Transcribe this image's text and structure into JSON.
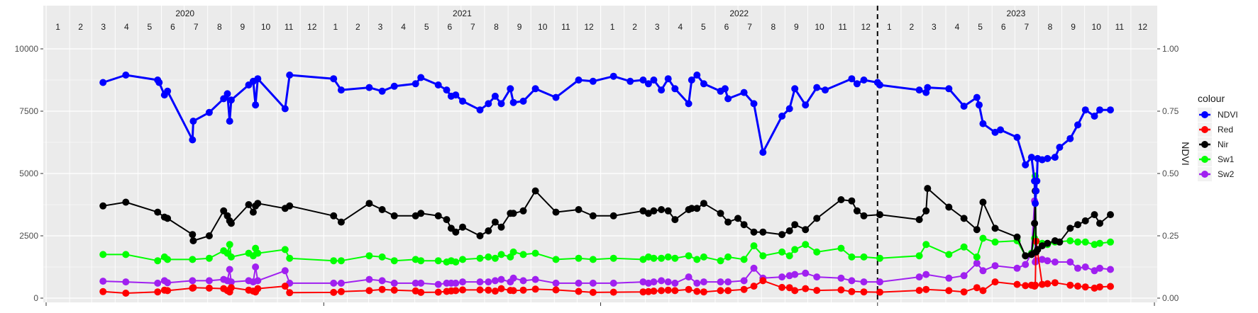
{
  "chart_data": {
    "type": "line",
    "x_type": "date",
    "xlim": [
      "2020-01-01",
      "2024-01-01"
    ],
    "ylim": [
      0,
      10000
    ],
    "y_ticks": [
      0,
      2500,
      5000,
      7500,
      10000
    ],
    "y_tick_labels": [
      "0",
      "2500",
      "5000",
      "7500",
      "10000"
    ],
    "y2lim": [
      0,
      1
    ],
    "y2_ticks": [
      0,
      0.25,
      0.5,
      0.75,
      1
    ],
    "y2_tick_labels": [
      "0.00",
      "0.25",
      "0.50",
      "0.75",
      "1.00"
    ],
    "y2label": "NDVI",
    "year_labels": [
      "2020",
      "2021",
      "2022",
      "2023"
    ],
    "month_labels": [
      "1",
      "2",
      "3",
      "4",
      "5",
      "6",
      "7",
      "8",
      "9",
      "10",
      "11",
      "12"
    ],
    "vline_date": "2023-01-01",
    "legend_title": "colour",
    "legend_position": "right",
    "grid": true,
    "colors": {
      "NDVI": "#0000ff",
      "Red": "#ff0000",
      "Nir": "#000000",
      "Sw1": "#00ff00",
      "Sw2": "#a020f0"
    },
    "series": [
      {
        "name": "NDVI",
        "axis": "right",
        "x": [
          "2020-03-16",
          "2020-04-15",
          "2020-05-27",
          "2020-05-29",
          "2020-06-05",
          "2020-06-09",
          "2020-07-12",
          "2020-07-13",
          "2020-08-03",
          "2020-08-22",
          "2020-08-27",
          "2020-08-30",
          "2020-09-01",
          "2020-09-24",
          "2020-09-30",
          "2020-10-03",
          "2020-10-06",
          "2020-11-11",
          "2020-11-17",
          "2021-01-14",
          "2021-01-24",
          "2021-03-02",
          "2021-03-19",
          "2021-04-04",
          "2021-05-02",
          "2021-05-09",
          "2021-06-01",
          "2021-06-12",
          "2021-06-18",
          "2021-06-24",
          "2021-07-03",
          "2021-07-26",
          "2021-08-06",
          "2021-08-15",
          "2021-08-23",
          "2021-09-04",
          "2021-09-08",
          "2021-09-21",
          "2021-10-07",
          "2021-11-03",
          "2021-12-03",
          "2021-12-22",
          "2022-01-18",
          "2022-02-09",
          "2022-02-26",
          "2022-03-05",
          "2022-03-12",
          "2022-03-22",
          "2022-03-31",
          "2022-04-09",
          "2022-04-27",
          "2022-05-01",
          "2022-05-08",
          "2022-05-17",
          "2022-06-08",
          "2022-06-14",
          "2022-06-18",
          "2022-07-09",
          "2022-07-22",
          "2022-08-03",
          "2022-08-28",
          "2022-09-07",
          "2022-09-14",
          "2022-09-28",
          "2022-10-13",
          "2022-10-24",
          "2022-11-28",
          "2022-12-05",
          "2022-12-14",
          "2023-01-01",
          "2023-01-04",
          "2023-02-25",
          "2023-03-06",
          "2023-03-08",
          "2023-04-05",
          "2023-04-25",
          "2023-05-12",
          "2023-05-15",
          "2023-05-20",
          "2023-06-05",
          "2023-06-12",
          "2023-07-04",
          "2023-07-15",
          "2023-07-23",
          "2023-07-27",
          "2023-07-28",
          "2023-07-29",
          "2023-07-30",
          "2023-07-31",
          "2023-08-06",
          "2023-08-13",
          "2023-08-23",
          "2023-08-29",
          "2023-09-12",
          "2023-09-22",
          "2023-10-02",
          "2023-10-14",
          "2023-10-21",
          "2023-11-04"
        ],
        "values": [
          0.865,
          0.895,
          0.875,
          0.865,
          0.815,
          0.83,
          0.635,
          0.71,
          0.745,
          0.8,
          0.82,
          0.71,
          0.795,
          0.855,
          0.87,
          0.775,
          0.88,
          0.76,
          0.895,
          0.88,
          0.835,
          0.845,
          0.83,
          0.85,
          0.86,
          0.885,
          0.855,
          0.835,
          0.81,
          0.815,
          0.79,
          0.755,
          0.78,
          0.81,
          0.78,
          0.84,
          0.785,
          0.79,
          0.84,
          0.805,
          0.875,
          0.87,
          0.89,
          0.87,
          0.875,
          0.86,
          0.875,
          0.835,
          0.88,
          0.84,
          0.78,
          0.875,
          0.895,
          0.86,
          0.83,
          0.84,
          0.8,
          0.825,
          0.78,
          0.585,
          0.73,
          0.76,
          0.84,
          0.775,
          0.845,
          0.835,
          0.88,
          0.86,
          0.875,
          0.865,
          0.855,
          0.835,
          0.825,
          0.845,
          0.84,
          0.77,
          0.805,
          0.775,
          0.7,
          0.665,
          0.675,
          0.645,
          0.535,
          0.565,
          0.47,
          0.38,
          0.43,
          0.47,
          0.56,
          0.555,
          0.56,
          0.565,
          0.605,
          0.64,
          0.695,
          0.755,
          0.73,
          0.755,
          0.755
        ]
      },
      {
        "name": "Red",
        "axis": "left",
        "x": [
          "2020-03-16",
          "2020-04-15",
          "2020-05-27",
          "2020-06-05",
          "2020-06-09",
          "2020-07-12",
          "2020-07-13",
          "2020-08-03",
          "2020-08-22",
          "2020-08-27",
          "2020-08-30",
          "2020-09-01",
          "2020-09-24",
          "2020-09-30",
          "2020-10-03",
          "2020-10-06",
          "2020-11-11",
          "2020-11-17",
          "2021-01-14",
          "2021-01-24",
          "2021-03-02",
          "2021-03-19",
          "2021-04-04",
          "2021-05-02",
          "2021-05-09",
          "2021-06-01",
          "2021-06-12",
          "2021-06-18",
          "2021-06-24",
          "2021-07-03",
          "2021-07-26",
          "2021-08-06",
          "2021-08-15",
          "2021-08-23",
          "2021-09-04",
          "2021-09-08",
          "2021-09-21",
          "2021-10-07",
          "2021-11-03",
          "2021-12-03",
          "2021-12-22",
          "2022-01-18",
          "2022-02-26",
          "2022-03-05",
          "2022-03-12",
          "2022-03-22",
          "2022-03-31",
          "2022-04-09",
          "2022-04-27",
          "2022-05-08",
          "2022-05-17",
          "2022-06-08",
          "2022-06-18",
          "2022-07-09",
          "2022-07-22",
          "2022-08-03",
          "2022-08-28",
          "2022-09-07",
          "2022-09-14",
          "2022-09-28",
          "2022-10-13",
          "2022-11-14",
          "2022-11-28",
          "2022-12-14",
          "2023-01-04",
          "2023-02-25",
          "2023-03-06",
          "2023-04-05",
          "2023-04-25",
          "2023-05-12",
          "2023-05-20",
          "2023-06-05",
          "2023-07-04",
          "2023-07-15",
          "2023-07-23",
          "2023-07-27",
          "2023-07-28",
          "2023-07-29",
          "2023-08-06",
          "2023-08-13",
          "2023-08-23",
          "2023-09-12",
          "2023-09-22",
          "2023-10-02",
          "2023-10-14",
          "2023-10-21",
          "2023-11-04"
        ],
        "values": [
          260,
          200,
          250,
          320,
          300,
          400,
          420,
          400,
          380,
          300,
          250,
          420,
          320,
          280,
          250,
          380,
          480,
          220,
          230,
          260,
          300,
          350,
          320,
          290,
          230,
          240,
          270,
          290,
          300,
          330,
          330,
          320,
          280,
          380,
          310,
          300,
          320,
          360,
          330,
          270,
          230,
          240,
          250,
          260,
          280,
          300,
          320,
          300,
          350,
          270,
          250,
          300,
          300,
          350,
          480,
          700,
          430,
          420,
          300,
          380,
          310,
          330,
          260,
          250,
          240,
          310,
          350,
          300,
          250,
          420,
          300,
          650,
          550,
          500,
          520,
          480,
          520,
          2280,
          550,
          580,
          620,
          520,
          480,
          450,
          400,
          450,
          470
        ]
      },
      {
        "name": "Nir",
        "axis": "left",
        "x": [
          "2020-03-16",
          "2020-04-15",
          "2020-05-27",
          "2020-06-05",
          "2020-06-09",
          "2020-07-12",
          "2020-07-13",
          "2020-08-03",
          "2020-08-22",
          "2020-08-27",
          "2020-08-30",
          "2020-09-01",
          "2020-09-24",
          "2020-09-30",
          "2020-10-03",
          "2020-10-06",
          "2020-11-11",
          "2020-11-17",
          "2021-01-14",
          "2021-01-24",
          "2021-03-02",
          "2021-03-19",
          "2021-04-04",
          "2021-05-02",
          "2021-05-09",
          "2021-06-01",
          "2021-06-12",
          "2021-06-18",
          "2021-06-24",
          "2021-07-03",
          "2021-07-26",
          "2021-08-06",
          "2021-08-15",
          "2021-08-23",
          "2021-09-04",
          "2021-09-08",
          "2021-09-21",
          "2021-10-07",
          "2021-11-03",
          "2021-12-03",
          "2021-12-22",
          "2022-01-18",
          "2022-02-26",
          "2022-03-05",
          "2022-03-12",
          "2022-03-22",
          "2022-03-31",
          "2022-04-09",
          "2022-04-27",
          "2022-05-01",
          "2022-05-08",
          "2022-05-17",
          "2022-06-08",
          "2022-06-18",
          "2022-07-01",
          "2022-07-09",
          "2022-07-22",
          "2022-08-03",
          "2022-08-28",
          "2022-09-07",
          "2022-09-14",
          "2022-09-28",
          "2022-10-13",
          "2022-11-14",
          "2022-11-28",
          "2022-12-05",
          "2022-12-14",
          "2023-01-04",
          "2023-02-25",
          "2023-03-06",
          "2023-03-08",
          "2023-04-05",
          "2023-04-25",
          "2023-05-12",
          "2023-05-20",
          "2023-06-05",
          "2023-07-04",
          "2023-07-15",
          "2023-07-23",
          "2023-07-27",
          "2023-07-28",
          "2023-07-29",
          "2023-07-31",
          "2023-08-06",
          "2023-08-13",
          "2023-08-23",
          "2023-08-29",
          "2023-09-12",
          "2023-09-22",
          "2023-10-02",
          "2023-10-14",
          "2023-10-21",
          "2023-11-04"
        ],
        "values": [
          3700,
          3850,
          3450,
          3250,
          3200,
          2550,
          2300,
          2500,
          3500,
          3300,
          3100,
          3000,
          3750,
          3450,
          3700,
          3800,
          3600,
          3700,
          3300,
          3050,
          3800,
          3550,
          3300,
          3300,
          3400,
          3300,
          3150,
          2800,
          2650,
          2850,
          2500,
          2700,
          3050,
          2850,
          3400,
          3400,
          3500,
          4300,
          3450,
          3550,
          3300,
          3300,
          3500,
          3400,
          3500,
          3550,
          3500,
          3150,
          3550,
          3600,
          3600,
          3800,
          3400,
          3050,
          3200,
          2950,
          2650,
          2650,
          2550,
          2700,
          2950,
          2750,
          3200,
          3950,
          3900,
          3500,
          3300,
          3350,
          3150,
          3500,
          4400,
          3650,
          3200,
          2750,
          3850,
          2800,
          2450,
          1700,
          1750,
          3000,
          4300,
          1850,
          1950,
          2100,
          2200,
          2300,
          2250,
          2800,
          2950,
          3100,
          3350,
          3000,
          3350
        ]
      },
      {
        "name": "Sw1",
        "axis": "left",
        "x": [
          "2020-03-16",
          "2020-04-15",
          "2020-05-27",
          "2020-06-05",
          "2020-06-09",
          "2020-07-12",
          "2020-08-03",
          "2020-08-22",
          "2020-08-27",
          "2020-08-30",
          "2020-09-01",
          "2020-09-24",
          "2020-09-30",
          "2020-10-03",
          "2020-10-06",
          "2020-11-11",
          "2020-11-17",
          "2021-01-14",
          "2021-01-24",
          "2021-03-02",
          "2021-03-19",
          "2021-04-04",
          "2021-05-02",
          "2021-05-09",
          "2021-06-01",
          "2021-06-12",
          "2021-06-18",
          "2021-06-24",
          "2021-07-03",
          "2021-07-26",
          "2021-08-06",
          "2021-08-15",
          "2021-08-23",
          "2021-09-04",
          "2021-09-08",
          "2021-09-21",
          "2021-10-07",
          "2021-11-03",
          "2021-12-03",
          "2021-12-22",
          "2022-01-18",
          "2022-02-26",
          "2022-03-05",
          "2022-03-12",
          "2022-03-22",
          "2022-03-31",
          "2022-04-09",
          "2022-04-27",
          "2022-05-08",
          "2022-05-17",
          "2022-06-08",
          "2022-06-18",
          "2022-07-09",
          "2022-07-22",
          "2022-08-03",
          "2022-08-28",
          "2022-09-07",
          "2022-09-14",
          "2022-09-28",
          "2022-10-13",
          "2022-11-14",
          "2022-11-28",
          "2022-12-14",
          "2023-01-04",
          "2023-02-25",
          "2023-03-06",
          "2023-04-05",
          "2023-04-25",
          "2023-05-12",
          "2023-05-20",
          "2023-06-05",
          "2023-07-04",
          "2023-07-15",
          "2023-07-23",
          "2023-07-27",
          "2023-07-28",
          "2023-07-29",
          "2023-08-06",
          "2023-08-13",
          "2023-08-23",
          "2023-09-12",
          "2023-09-22",
          "2023-10-02",
          "2023-10-14",
          "2023-10-21",
          "2023-11-04"
        ],
        "values": [
          1750,
          1750,
          1500,
          1650,
          1550,
          1550,
          1600,
          1900,
          1800,
          2150,
          1650,
          1800,
          1700,
          2000,
          1800,
          1950,
          1600,
          1500,
          1500,
          1700,
          1650,
          1500,
          1550,
          1500,
          1500,
          1450,
          1500,
          1450,
          1550,
          1600,
          1650,
          1600,
          1750,
          1650,
          1850,
          1750,
          1800,
          1550,
          1600,
          1550,
          1600,
          1550,
          1650,
          1600,
          1600,
          1650,
          1600,
          1700,
          1550,
          1650,
          1500,
          1650,
          1550,
          2100,
          1700,
          1850,
          1700,
          1950,
          2150,
          1850,
          2000,
          1650,
          1650,
          1600,
          1700,
          2150,
          1750,
          2050,
          1650,
          2400,
          2250,
          2300,
          1700,
          1800,
          2400,
          4900,
          2300,
          2200,
          2150,
          2250,
          2300,
          2250,
          2250,
          2150,
          2200,
          2250
        ]
      },
      {
        "name": "Sw2",
        "axis": "left",
        "x": [
          "2020-03-16",
          "2020-04-15",
          "2020-05-27",
          "2020-06-05",
          "2020-06-09",
          "2020-07-12",
          "2020-08-03",
          "2020-08-22",
          "2020-08-27",
          "2020-08-30",
          "2020-09-01",
          "2020-09-24",
          "2020-09-30",
          "2020-10-03",
          "2020-10-06",
          "2020-11-11",
          "2020-11-17",
          "2021-01-14",
          "2021-01-24",
          "2021-03-02",
          "2021-03-19",
          "2021-04-04",
          "2021-05-02",
          "2021-05-09",
          "2021-06-01",
          "2021-06-12",
          "2021-06-18",
          "2021-06-24",
          "2021-07-03",
          "2021-07-26",
          "2021-08-06",
          "2021-08-15",
          "2021-08-23",
          "2021-09-04",
          "2021-09-08",
          "2021-09-21",
          "2021-10-07",
          "2021-11-03",
          "2021-12-03",
          "2021-12-22",
          "2022-01-18",
          "2022-02-26",
          "2022-03-05",
          "2022-03-12",
          "2022-03-22",
          "2022-03-31",
          "2022-04-09",
          "2022-04-27",
          "2022-05-08",
          "2022-05-17",
          "2022-06-08",
          "2022-06-18",
          "2022-07-09",
          "2022-07-22",
          "2022-08-03",
          "2022-08-28",
          "2022-09-07",
          "2022-09-14",
          "2022-09-28",
          "2022-10-13",
          "2022-11-14",
          "2022-11-28",
          "2022-12-14",
          "2023-01-04",
          "2023-02-25",
          "2023-03-06",
          "2023-04-05",
          "2023-04-25",
          "2023-05-12",
          "2023-05-20",
          "2023-06-05",
          "2023-07-04",
          "2023-07-15",
          "2023-07-23",
          "2023-07-27",
          "2023-07-28",
          "2023-07-29",
          "2023-08-06",
          "2023-08-13",
          "2023-08-23",
          "2023-09-12",
          "2023-09-22",
          "2023-10-02",
          "2023-10-14",
          "2023-10-21",
          "2023-11-04"
        ],
        "values": [
          680,
          650,
          600,
          700,
          620,
          700,
          700,
          750,
          700,
          1150,
          650,
          700,
          650,
          1250,
          700,
          1100,
          600,
          600,
          600,
          750,
          700,
          600,
          600,
          600,
          550,
          600,
          600,
          600,
          650,
          650,
          650,
          700,
          750,
          650,
          800,
          700,
          750,
          600,
          600,
          600,
          600,
          650,
          600,
          650,
          700,
          650,
          600,
          850,
          600,
          650,
          650,
          650,
          700,
          1200,
          800,
          850,
          900,
          950,
          1000,
          850,
          800,
          700,
          650,
          650,
          850,
          950,
          800,
          900,
          1400,
          1100,
          1300,
          1200,
          1350,
          1800,
          3900,
          1450,
          1500,
          1550,
          1500,
          1450,
          1450,
          1200,
          1250,
          1100,
          1200,
          1150
        ]
      }
    ]
  }
}
